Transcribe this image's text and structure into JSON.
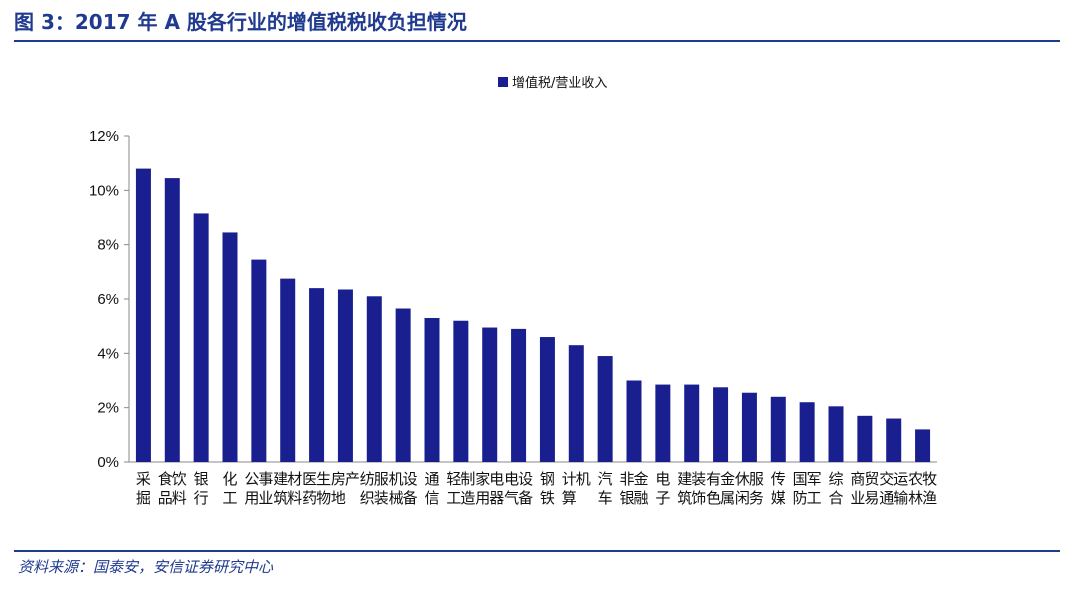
{
  "header": {
    "title": "图 3：2017 年 A 股各行业的增值税税收负担情况"
  },
  "footer": {
    "source": "资料来源：国泰安，安信证券研究中心"
  },
  "colors": {
    "bar": "#1a1f8f",
    "accent": "#1f3a8f"
  },
  "chart_data": {
    "type": "bar",
    "title": "",
    "xlabel": "",
    "ylabel": "",
    "ylim": [
      0,
      12
    ],
    "y_tick_format": "percent",
    "yticks": [
      "0%",
      "2%",
      "4%",
      "6%",
      "8%",
      "10%",
      "12%"
    ],
    "legend": {
      "position": "top-center",
      "entries": [
        "增值税/营业收入"
      ]
    },
    "grid": false,
    "categories": [
      "采掘",
      "食品饮料",
      "银行",
      "化工",
      "公用事业",
      "建筑材料",
      "医药生物",
      "房地产",
      "纺织服装",
      "机械设备",
      "通信",
      "轻工制造",
      "家用电器",
      "电气设备",
      "钢铁",
      "计算机",
      "汽车",
      "非银金融",
      "电子",
      "建筑装饰",
      "有色金属",
      "休闲服务",
      "传媒",
      "国防军工",
      "综合",
      "商业贸易",
      "交通运输",
      "农林牧渔"
    ],
    "series": [
      {
        "name": "增值税/营业收入",
        "values": [
          10.8,
          10.45,
          9.15,
          8.45,
          7.45,
          6.75,
          6.4,
          6.35,
          6.1,
          5.65,
          5.3,
          5.2,
          4.95,
          4.9,
          4.6,
          4.3,
          3.9,
          3.0,
          2.85,
          2.85,
          2.75,
          2.55,
          2.4,
          2.2,
          2.05,
          1.7,
          1.6,
          1.2
        ]
      }
    ]
  }
}
